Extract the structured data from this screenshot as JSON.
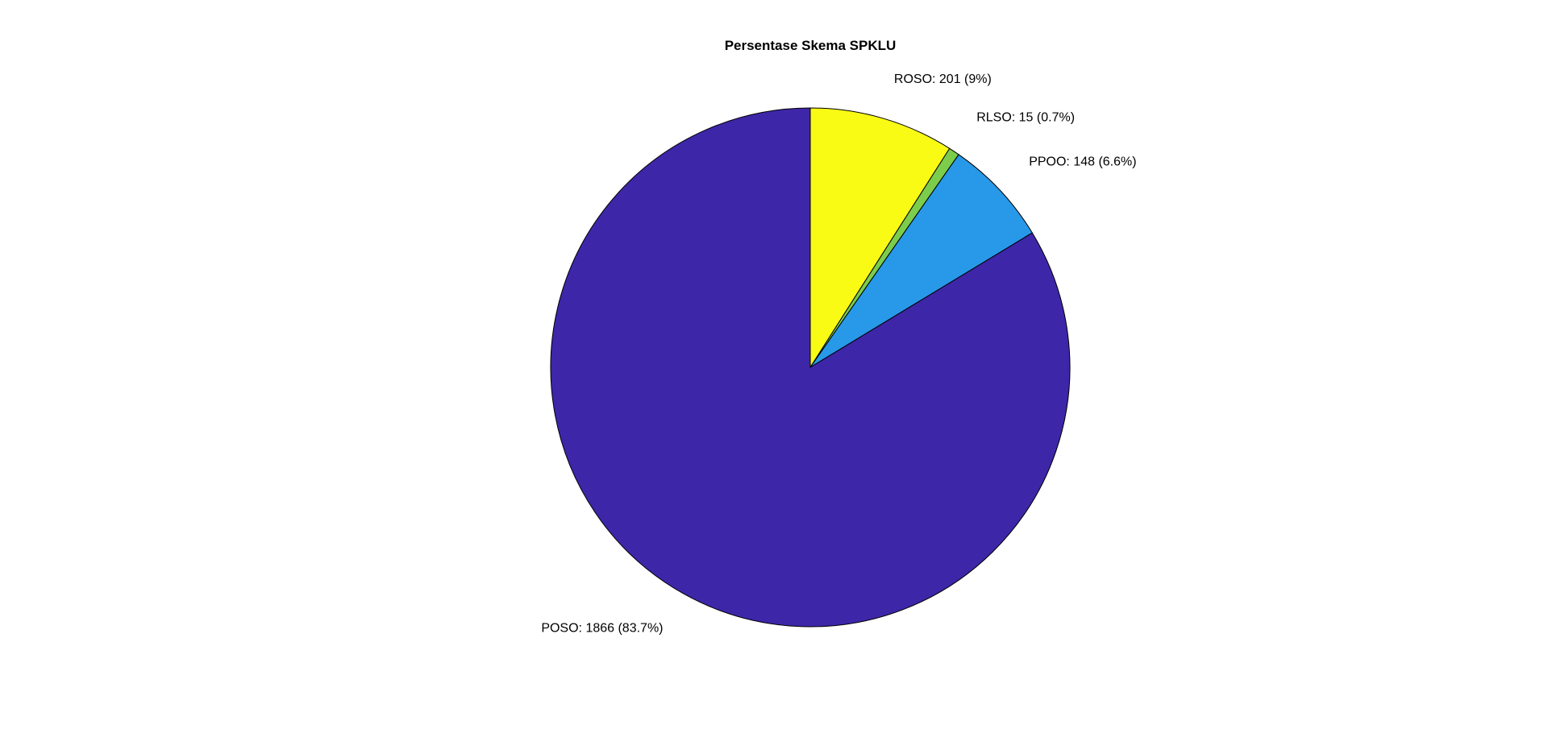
{
  "chart_data": {
    "type": "pie",
    "title": "Persentase Skema SPKLU",
    "start_angle_deg": 90,
    "direction": "clockwise",
    "slices": [
      {
        "name": "ROSO",
        "value": 201,
        "label": "ROSO: 201 (9%)",
        "color": "#f9fb15"
      },
      {
        "name": "RLSO",
        "value": 15,
        "label": "RLSO: 15 (0.7%)",
        "color": "#7ccd4b"
      },
      {
        "name": "PPOO",
        "value": 148,
        "label": "PPOO: 148 (6.6%)",
        "color": "#2898e9"
      },
      {
        "name": "POSO",
        "value": 1866,
        "label": "POSO: 1866 (83.7%)",
        "color": "#3e26a8"
      }
    ]
  }
}
